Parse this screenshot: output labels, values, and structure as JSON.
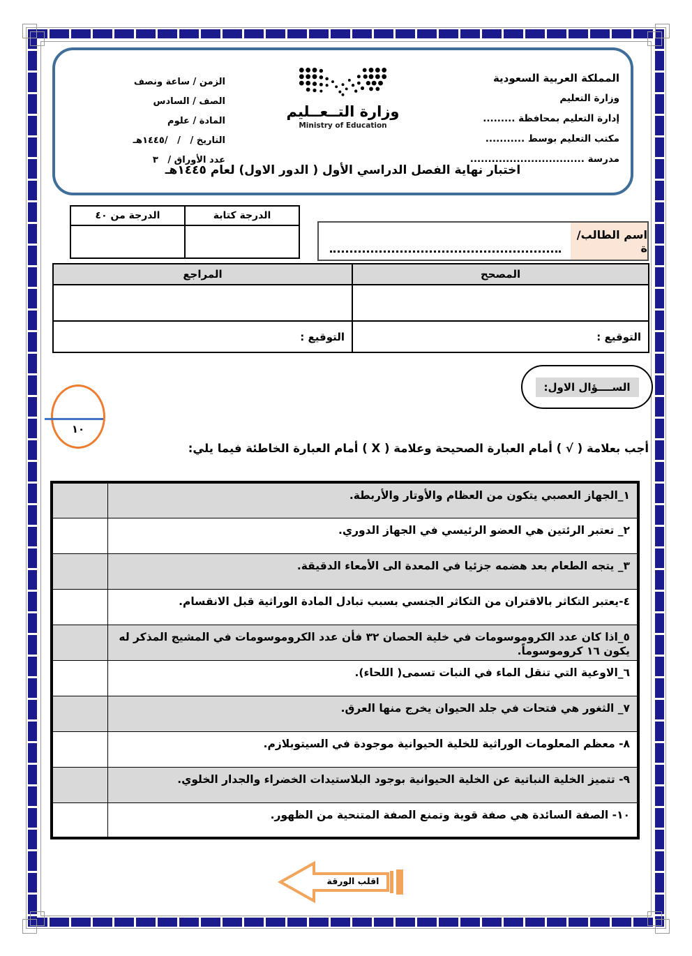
{
  "header": {
    "right_lines": [
      "المملكة العربية السعودية",
      "وزارة التعليم",
      "إدارة التعليم بمحافظة .........",
      "مكتب التعليم بوسط ...........",
      "مدرسة ................................"
    ],
    "left_lines": [
      "الزمن / ساعة ونصف",
      "الصف / السادس",
      "المادة / علوم",
      "التاريخ /   /   /١٤٤٥هـ",
      "عدد الأوراق /   ٣"
    ],
    "logo_arabic": "وزارة التــعــليم",
    "logo_english": "Ministry of Education",
    "exam_title": "اختبار نهاية الفصل الدراسي الأول ( الدور الاول) لعام ١٤٤٥هـ"
  },
  "grade_table": {
    "col_written": "الدرجة كتابة",
    "col_total": "الدرجة من ٤٠"
  },
  "student": {
    "name_label": "اسم الطالب/ة"
  },
  "review_table": {
    "corrector": "المصحح",
    "reviewer": "المراجع",
    "signature": "التوقيع :"
  },
  "question1": {
    "label": "الســــؤال الاول:",
    "score": "١٠",
    "instruction": "أجب بعلامة ( √ ) أمام العبارة الصحيحة وعلامة ( X ) أمام العبارة الخاطئة فيما يلي:"
  },
  "statements": [
    {
      "text": "١_الجهاز العصبي يتكون من العظام والأوتار والأربطة."
    },
    {
      "text": "٢_ تعتبر الرئتين هي العضو الرئيسي في الجهاز الدوري."
    },
    {
      "text": "٣_ يتجه الطعام بعد هضمه جزئيا في المعدة الى الأمعاء الدقيقة."
    },
    {
      "text": "٤-يعتبر التكاثر بالاقتران من التكاثر الجنسي بسبب تبادل المادة الوراثية قبل الانقسام."
    },
    {
      "text": "٥_اذا كان عدد الكروموسومات في خلية الحصان ٣٢ فأن عدد الكروموسومات في المشيج المذكر له يكون ١٦ كروموسوماً."
    },
    {
      "text": "٦_الاوعية التي تنقل الماء في النبات تسمى( اللحاء)."
    },
    {
      "text": "٧_ الثغور هي فتحات في جلد الحيوان يخرج منها العرق."
    },
    {
      "text": "٨- معظم المعلومات الوراثية للخلية الحيوانية موجودة في السيتوبلازم."
    },
    {
      "text": "٩- تتميز الخلية النباتية عن الخلية الحيوانية بوجود البلاستيدات الخضراء والجدار الخلوي."
    },
    {
      "text": "١٠- الصفة السائدة هي صفة قوية وتمنع الصفة المتنحية من الظهور."
    }
  ],
  "footer": {
    "flip_label": "اقلب الورقة"
  },
  "colors": {
    "frame_navy": "#1B1B8E",
    "header_outline": "#3E6E99",
    "name_label_bg": "#FBE5D6",
    "shade_gray": "#D9D9D9",
    "accent_orange": "#ED7D31",
    "score_line_blue": "#4472C4",
    "arrow_orange": "#F2A35C"
  }
}
